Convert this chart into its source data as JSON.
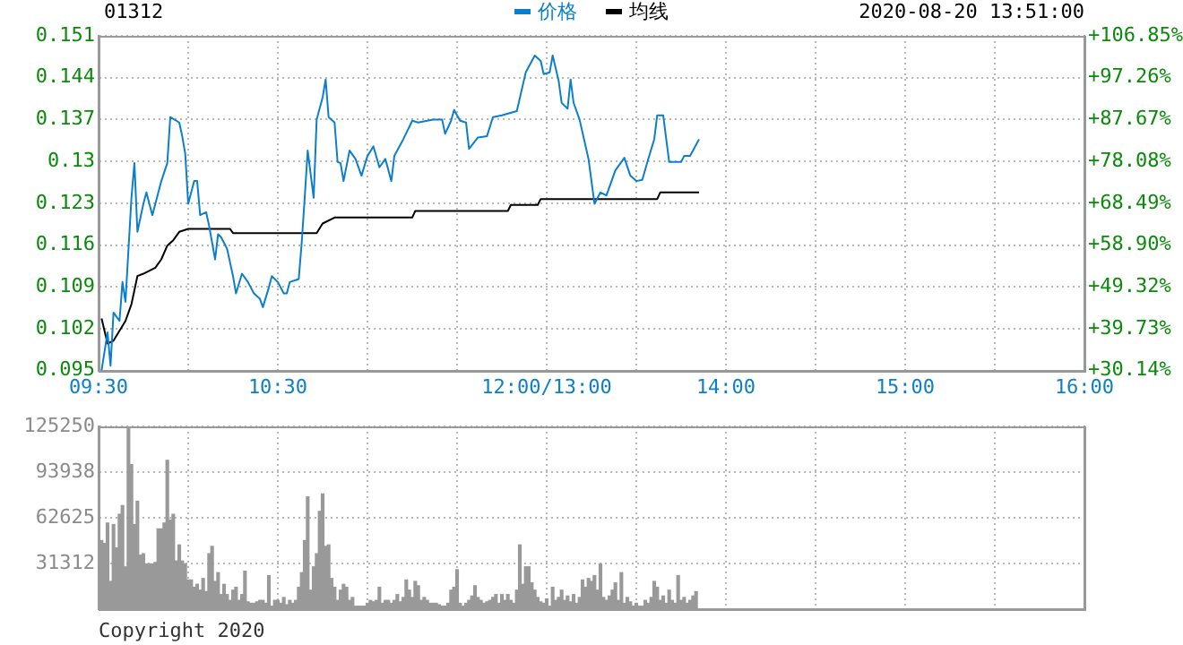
{
  "chart_data": [
    {
      "type": "line",
      "title": "01312",
      "subtitle": "2020-08-20 13:51:00",
      "legend": "top",
      "grid": true,
      "categories": [
        "09:30",
        null,
        null,
        null,
        null,
        null,
        null,
        null,
        null,
        null,
        null,
        null,
        null,
        null,
        null,
        null,
        null,
        null,
        null,
        null,
        null,
        null,
        null,
        null,
        null,
        null,
        null,
        null,
        null,
        null,
        null,
        null,
        null,
        null,
        null,
        null,
        null,
        null,
        null,
        null,
        null,
        null,
        null,
        null,
        null,
        null,
        null,
        null,
        null,
        null,
        null,
        null,
        null,
        null,
        null,
        null,
        null,
        null,
        null,
        null,
        "10:30",
        null,
        null,
        null,
        null,
        null,
        null,
        null,
        null,
        null,
        null,
        null,
        null,
        null,
        null,
        null,
        null,
        null,
        null,
        null,
        null,
        null,
        null,
        null,
        null,
        null,
        null,
        null,
        null,
        null,
        null,
        null,
        null,
        null,
        null,
        null,
        null,
        null,
        null,
        null,
        null,
        null,
        null,
        null,
        null,
        null,
        null,
        null,
        null,
        null,
        null,
        null,
        null,
        null,
        null,
        null,
        null,
        null,
        null,
        null,
        null,
        null,
        null,
        null,
        null,
        null,
        null,
        null,
        null,
        null,
        null,
        null,
        null,
        null,
        null,
        null,
        null,
        null,
        null,
        null,
        null,
        null,
        null,
        null,
        null,
        null,
        null,
        null,
        null,
        null,
        "12:00/13:00",
        null,
        null,
        null,
        null,
        null,
        null,
        null,
        null,
        null,
        null,
        null,
        null,
        null,
        null,
        null,
        null,
        null,
        null,
        null,
        null,
        null,
        null,
        null,
        null,
        null,
        null,
        null,
        null,
        null,
        null,
        null,
        null,
        null,
        null,
        null,
        null,
        null,
        null,
        null,
        null,
        null,
        null,
        null,
        null,
        null,
        null,
        null,
        null,
        null,
        null,
        null,
        null,
        null,
        null,
        null,
        null,
        null,
        null,
        null,
        "14:00",
        null,
        null,
        null,
        null,
        null,
        null,
        null,
        null,
        null,
        null,
        null,
        null,
        null,
        null,
        null,
        null,
        null,
        null,
        null,
        null,
        null,
        null,
        null,
        null,
        null,
        null,
        null,
        null,
        null,
        null,
        null,
        null,
        null,
        null,
        null,
        null,
        null,
        null,
        null,
        null,
        null,
        null,
        null,
        null,
        null,
        null,
        null,
        null,
        null,
        null,
        null,
        null,
        null,
        null,
        null,
        null,
        null,
        null,
        null,
        "15:00",
        null,
        null,
        null,
        null,
        null,
        null,
        null,
        null,
        null,
        null,
        null,
        null,
        null,
        null,
        null,
        null,
        null,
        null,
        null,
        null,
        null,
        null,
        null,
        null,
        null,
        null,
        null,
        null,
        null,
        null,
        null,
        null,
        null,
        null,
        null,
        null,
        null,
        null,
        null,
        null,
        null,
        null,
        null,
        null,
        null,
        null,
        null,
        null,
        null,
        null,
        null,
        null,
        null,
        null,
        null,
        null,
        null,
        null,
        null,
        "16:00"
      ],
      "ylim": [
        0.095,
        0.151
      ],
      "yticks": [
        0.095,
        0.102,
        0.109,
        0.116,
        0.123,
        0.13,
        0.137,
        0.144,
        0.151
      ],
      "y2lim": [
        30.14,
        106.85
      ],
      "y2ticks": [
        {
          "value": 30.14,
          "label": "+30.14%"
        },
        {
          "value": 39.73,
          "label": "+39.73%"
        },
        {
          "value": 49.32,
          "label": "+49.32%"
        },
        {
          "value": 58.9,
          "label": "+58.90%"
        },
        {
          "value": 68.49,
          "label": "+68.49%"
        },
        {
          "value": 78.08,
          "label": "+78.08%"
        },
        {
          "value": 87.67,
          "label": "+87.67%"
        },
        {
          "value": 97.26,
          "label": "+97.26%"
        },
        {
          "value": 106.85,
          "label": "+106.85%"
        }
      ],
      "series": [
        {
          "name": "价格",
          "color": "#0b7fcc",
          "values": [
            null,
            0.095,
            null,
            0.1014,
            0.0958,
            0.1047,
            null,
            0.1033,
            0.1098,
            0.1065,
            null,
            0.1239,
            0.1297,
            0.1182,
            null,
            0.1229,
            0.1248,
            null,
            0.121,
            0.1229,
            null,
            0.1267,
            null,
            0.1297,
            0.1374,
            null,
            null,
            0.1365,
            0.1342,
            0.1313,
            0.1229,
            null,
            0.1267,
            0.1267,
            0.121,
            null,
            0.1215,
            0.1192,
            null,
            0.1136,
            0.1178,
            0.1173,
            null,
            0.1154,
            null,
            0.1108,
            0.1079,
            null,
            0.1112,
            null,
            0.1098,
            null,
            0.1079,
            null,
            0.107,
            0.1056,
            null,
            0.1089,
            0.1108,
            null,
            0.1098,
            null,
            0.1079,
            0.1079,
            0.1098,
            null,
            null,
            0.1103,
            0.1164,
            0.1239,
            0.1318,
            null,
            0.1239,
            0.137,
            null,
            0.1407,
            0.1437,
            0.1374,
            null,
            0.1365,
            0.1299,
            0.1297,
            0.1267,
            null,
            0.1318,
            null,
            0.1304,
            null,
            0.1276,
            null,
            0.1309,
            null,
            0.1325,
            null,
            0.129,
            null,
            0.1304,
            null,
            0.1267,
            0.1309,
            null,
            null,
            0.1337,
            null,
            null,
            0.1368,
            null,
            0.1365,
            null,
            null,
            0.1368,
            null,
            0.137,
            null,
            null,
            0.137,
            0.1346,
            null,
            0.1368,
            0.1386,
            null,
            0.1368,
            null,
            0.1365,
            0.1321,
            null,
            null,
            0.134,
            null,
            null,
            0.1342,
            null,
            0.1374,
            null,
            null,
            0.1377,
            null,
            null,
            null,
            null,
            0.1384,
            null,
            null,
            0.1449,
            null,
            null,
            0.1477,
            null,
            0.1468,
            0.1446,
            null,
            0.1449,
            0.1477,
            null,
            0.1435,
            0.1398,
            null,
            0.1388,
            0.1437,
            0.1398,
            null,
            0.137,
            null,
            null,
            0.1304,
            null,
            0.1229,
            null,
            0.1248,
            null,
            0.1243,
            null,
            null,
            0.1285,
            null,
            null,
            0.1306,
            null,
            0.1276,
            null,
            0.1267,
            null,
            0.1269,
            null,
            0.1304,
            null,
            0.1337,
            0.1377,
            null,
            0.1377,
            null,
            0.1299,
            null,
            null,
            null,
            0.1299,
            0.1309,
            null,
            0.1309,
            null,
            null,
            0.1337,
            null,
            null,
            null,
            null,
            null,
            null,
            null,
            null,
            null,
            null,
            null,
            null,
            null,
            null,
            null,
            null,
            null,
            null,
            null,
            null,
            null,
            null,
            null,
            null,
            null,
            null,
            null,
            null,
            null,
            null,
            null,
            null,
            null,
            null,
            null,
            null,
            null,
            null,
            null,
            null,
            null,
            null,
            null,
            null,
            null,
            null,
            null,
            null,
            null,
            null,
            null,
            null,
            null,
            null,
            null,
            null,
            null,
            null,
            null,
            null,
            null,
            null,
            null,
            null,
            null,
            null,
            null,
            null,
            null,
            null,
            null,
            null,
            null,
            null,
            null,
            null,
            null,
            null,
            null,
            null,
            null,
            null,
            null,
            null,
            null,
            null,
            null,
            null,
            null,
            null,
            null,
            null,
            null,
            null,
            null,
            null,
            null,
            null,
            null,
            null,
            null,
            null,
            null,
            null,
            null,
            null,
            null,
            null,
            null,
            null,
            null,
            null,
            null,
            null,
            null,
            null,
            null,
            null,
            null,
            null,
            null,
            null,
            null,
            null,
            null,
            null,
            null,
            null,
            null
          ]
        },
        {
          "name": "均线",
          "color": "#000000",
          "values": [
            null,
            0.1037,
            null,
            0.0995,
            null,
            0.1,
            null,
            null,
            null,
            0.1033,
            null,
            0.1061,
            null,
            0.1108,
            null,
            0.1112,
            null,
            null,
            null,
            0.1122,
            null,
            0.1136,
            null,
            0.1159,
            null,
            0.1168,
            null,
            0.1182,
            null,
            null,
            0.1187,
            null,
            null,
            null,
            null,
            null,
            null,
            null,
            null,
            null,
            null,
            null,
            null,
            null,
            0.1187,
            0.118,
            null,
            null,
            null,
            null,
            null,
            null,
            null,
            null,
            null,
            null,
            null,
            null,
            null,
            null,
            null,
            null,
            null,
            null,
            null,
            null,
            null,
            null,
            null,
            null,
            null,
            null,
            null,
            0.118,
            null,
            0.1196,
            null,
            null,
            null,
            0.1206,
            null,
            null,
            null,
            null,
            null,
            null,
            null,
            null,
            null,
            null,
            null,
            null,
            null,
            null,
            null,
            null,
            null,
            null,
            null,
            null,
            null,
            null,
            null,
            null,
            null,
            0.1206,
            0.1217,
            null,
            null,
            null,
            null,
            null,
            null,
            null,
            null,
            null,
            null,
            null,
            null,
            null,
            null,
            null,
            null,
            null,
            null,
            null,
            null,
            null,
            null,
            null,
            null,
            null,
            null,
            null,
            null,
            null,
            null,
            0.1217,
            0.1227,
            null,
            null,
            null,
            null,
            null,
            null,
            null,
            null,
            0.1227,
            0.1237,
            null,
            null,
            null,
            null,
            null,
            null,
            null,
            null,
            null,
            null,
            null,
            null,
            null,
            null,
            null,
            null,
            null,
            null,
            null,
            null,
            null,
            null,
            null,
            null,
            null,
            null,
            null,
            null,
            null,
            null,
            null,
            null,
            null,
            null,
            null,
            null,
            null,
            null,
            0.1237,
            0.1248,
            null,
            null,
            null,
            null,
            null,
            null,
            null,
            null,
            null,
            null,
            null,
            null,
            0.1248,
            null,
            null,
            null,
            null,
            null,
            null,
            null,
            null,
            null,
            null,
            null,
            null,
            null,
            null,
            null,
            null,
            null,
            null,
            null,
            null,
            null,
            null,
            null,
            null,
            null,
            null,
            null,
            null,
            null,
            null,
            null,
            null,
            null,
            null,
            null,
            null,
            null,
            null,
            null,
            null,
            null,
            null,
            null,
            null,
            null,
            null,
            null,
            null,
            null,
            null,
            null,
            null,
            null,
            null,
            null,
            null,
            null,
            null,
            null,
            null,
            null,
            null,
            null,
            null,
            null,
            null,
            null,
            null,
            null,
            null,
            null,
            null,
            null,
            null,
            null,
            null,
            null,
            null,
            null,
            null,
            null,
            null,
            null,
            null,
            null,
            null,
            null,
            null,
            null,
            null,
            null,
            null,
            null,
            null,
            null,
            null,
            null,
            null,
            null,
            null,
            null,
            null,
            null,
            null,
            null,
            null,
            null,
            null,
            null,
            null,
            null,
            null,
            null,
            null,
            null,
            null,
            null,
            null,
            null,
            null,
            null,
            null,
            null,
            null,
            null,
            null,
            null,
            null,
            null
          ]
        }
      ]
    },
    {
      "type": "bar",
      "legend": false,
      "grid": true,
      "tick_labels": "y",
      "color": "#999999",
      "annotations": [
        "Copyright 2020"
      ],
      "categories": [
        null,
        null,
        null,
        null,
        null,
        null,
        null,
        null,
        null,
        null,
        null,
        null,
        null,
        null,
        null,
        null,
        null,
        null,
        null,
        null,
        null,
        null,
        null,
        null,
        null,
        null,
        null,
        null,
        null,
        null,
        null,
        null,
        null,
        null,
        null,
        null,
        null,
        null,
        null,
        null,
        null,
        null,
        null,
        null,
        null,
        null,
        null,
        null,
        null,
        null,
        null,
        null,
        null,
        null,
        null,
        null,
        null,
        null,
        null,
        null,
        null,
        null,
        null,
        null,
        null,
        null,
        null,
        null,
        null,
        null,
        null,
        null,
        null,
        null,
        null,
        null,
        null,
        null,
        null,
        null,
        null,
        null,
        null,
        null,
        null,
        null,
        null,
        null,
        null,
        null,
        null,
        null,
        null,
        null,
        null,
        null,
        null,
        null,
        null,
        null,
        null,
        null,
        null,
        null,
        null,
        null,
        null,
        null,
        null,
        null,
        null,
        null,
        null,
        null,
        null,
        null,
        null,
        null,
        null,
        null,
        null,
        null,
        null,
        null,
        null,
        null,
        null,
        null,
        null,
        null,
        null,
        null,
        null,
        null,
        null,
        null,
        null,
        null,
        null,
        null,
        null,
        null,
        null,
        null,
        null,
        null,
        null,
        null,
        null,
        null,
        null,
        null,
        null,
        null,
        null,
        null,
        null,
        null,
        null,
        null,
        null,
        null,
        null,
        null,
        null,
        null,
        null,
        null,
        null,
        null,
        null,
        null,
        null,
        null,
        null,
        null,
        null,
        null,
        null,
        null,
        null,
        null,
        null,
        null,
        null,
        null,
        null,
        null,
        null,
        null,
        null,
        null,
        null,
        null,
        null,
        null,
        null,
        null,
        null,
        null,
        null,
        null,
        null,
        null,
        null,
        null,
        null,
        null,
        null,
        null,
        null,
        null,
        null,
        null,
        null,
        null,
        null,
        null,
        null,
        null,
        null,
        null,
        null,
        null,
        null,
        null,
        null,
        null,
        null,
        null,
        null,
        null,
        null,
        null,
        null,
        null,
        null,
        null,
        null,
        null,
        null,
        null,
        null,
        null,
        null,
        null,
        null,
        null,
        null,
        null,
        null,
        null,
        null,
        null,
        null,
        null,
        null,
        null,
        null,
        null,
        null,
        null,
        null,
        null,
        null,
        null,
        null,
        null,
        null,
        null,
        null,
        null,
        null,
        null,
        null,
        null,
        null,
        null,
        null,
        null,
        null,
        null,
        null,
        null,
        null,
        null,
        null,
        null,
        null,
        null,
        null,
        null,
        null,
        null,
        null,
        null,
        null,
        null,
        null,
        null,
        null,
        null,
        null,
        null,
        null,
        null,
        null,
        null,
        null,
        null,
        null,
        null,
        null,
        null,
        null,
        null,
        null,
        null,
        null,
        null,
        null,
        null,
        null,
        null,
        null,
        null,
        null,
        null,
        null,
        null,
        null
      ],
      "ylim": [
        0,
        125250
      ],
      "yticks": [
        31312,
        62625,
        93938,
        125250
      ],
      "values": [
        null,
        47000,
        45000,
        59000,
        19000,
        58000,
        42000,
        65000,
        71000,
        29000,
        124000,
        99000,
        58000,
        74000,
        37000,
        38000,
        31000,
        31000,
        31000,
        32000,
        55000,
        55000,
        59000,
        102000,
        61000,
        65000,
        33000,
        44000,
        33000,
        31000,
        20000,
        20000,
        15000,
        17000,
        13000,
        21000,
        12000,
        38000,
        43000,
        19000,
        25000,
        10000,
        17000,
        10000,
        6000,
        13000,
        15000,
        6000,
        10000,
        26000,
        5000,
        4000,
        4000,
        5000,
        6000,
        6000,
        4000,
        23000,
        2000,
        6000,
        6000,
        4000,
        8000,
        3000,
        6000,
        4000,
        6000,
        15000,
        25000,
        47000,
        77000,
        13000,
        29000,
        38000,
        67000,
        79000,
        43000,
        44000,
        21000,
        15000,
        6000,
        13000,
        17000,
        15000,
        6000,
        8000,
        2000,
        2000,
        2000,
        2000,
        4000,
        6000,
        5000,
        6000,
        15000,
        4000,
        6000,
        6000,
        4000,
        6000,
        10000,
        5000,
        8000,
        20000,
        13000,
        8000,
        19000,
        16000,
        6000,
        8000,
        6000,
        4000,
        4000,
        4000,
        3000,
        2000,
        2000,
        4000,
        13000,
        15000,
        27000,
        4000,
        2000,
        4000,
        6000,
        9000,
        16000,
        8000,
        6000,
        4000,
        5000,
        6000,
        8000,
        10000,
        4000,
        10000,
        6000,
        10000,
        6000,
        4000,
        13000,
        44000,
        17000,
        29000,
        29000,
        18000,
        13000,
        8000,
        5000,
        4000,
        7000,
        2000,
        15000,
        6000,
        8000,
        13000,
        6000,
        9000,
        5000,
        10000,
        4000,
        8000,
        20000,
        15000,
        21000,
        19000,
        23000,
        13000,
        31000,
        8000,
        6000,
        9000,
        13000,
        18000,
        6000,
        25000,
        4000,
        8000,
        5000,
        2000,
        4000,
        2000,
        2000,
        6000,
        4000,
        8000,
        19000,
        15000,
        6000,
        9000,
        4000,
        13000,
        6000,
        4000,
        23000,
        6000,
        8000,
        4000,
        6000,
        9000,
        12000,
        null,
        null,
        null,
        null,
        null,
        null,
        null,
        null,
        null,
        null,
        null,
        null,
        null,
        null,
        null,
        null,
        null,
        null,
        null,
        null,
        null,
        null,
        null,
        null,
        null,
        null,
        null,
        null,
        null,
        null,
        null,
        null,
        null,
        null,
        null,
        null,
        null,
        null,
        null,
        null,
        null,
        null,
        null,
        null,
        null,
        null,
        null,
        null,
        null,
        null,
        null,
        null,
        null,
        null,
        null,
        null,
        null,
        null,
        null,
        null,
        null,
        null,
        null,
        null,
        null,
        null,
        null,
        null,
        null,
        null,
        null,
        null,
        null,
        null,
        null,
        null,
        null,
        null,
        null,
        null,
        null,
        null,
        null,
        null,
        null,
        null,
        null,
        null,
        null,
        null,
        null,
        null,
        null,
        null,
        null,
        null,
        null,
        null,
        null,
        null,
        null,
        null,
        null,
        null,
        null,
        null,
        null,
        null,
        null,
        null,
        null,
        null,
        null,
        null,
        null,
        null,
        null,
        null,
        null,
        null,
        null,
        null,
        null,
        null,
        null,
        null,
        null,
        null,
        null,
        null
      ]
    }
  ]
}
